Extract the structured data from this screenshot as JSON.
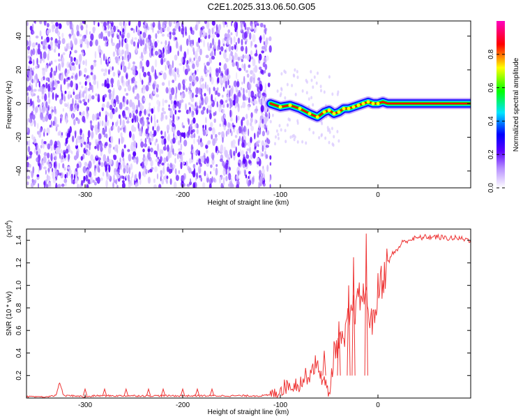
{
  "title": "C2E1.2025.313.06.50.G05",
  "chart_data": [
    {
      "type": "heatmap",
      "xlabel": "Height of straight line (km)",
      "ylabel": "Frequency (Hz)",
      "xlim": [
        -360,
        95
      ],
      "ylim": [
        -50,
        49
      ],
      "xticks": [
        -300,
        -200,
        -100,
        0
      ],
      "yticks": [
        -40,
        -20,
        0,
        20,
        40
      ],
      "x_tick_labels": [
        "-300",
        "-200",
        "-100",
        "0"
      ],
      "y_tick_labels": [
        "-40",
        "-20",
        "0",
        "20",
        "40"
      ],
      "noise_region_x": [
        -360,
        -110
      ],
      "signal_track": {
        "x": [
          -110,
          -100,
          -90,
          -80,
          -70,
          -62,
          -55,
          -50,
          -45,
          -40,
          -35,
          -30,
          -25,
          -20,
          -15,
          -10,
          -5,
          0,
          5,
          10,
          95
        ],
        "freq": [
          0,
          -2,
          -1,
          -3,
          -6,
          -8,
          -5,
          -4,
          -6,
          -5,
          -3,
          -3,
          -2,
          -1,
          0,
          1,
          0,
          0,
          1,
          0,
          0
        ]
      },
      "colorbar": {
        "label": "Normalized spectral amplitude",
        "range": [
          0,
          1
        ],
        "ticks": [
          "0.0",
          "0.2",
          "0.4",
          "0.6",
          "0.8"
        ],
        "colors": [
          "#ffffff",
          "#7a2cff",
          "#0000ff",
          "#00ffff",
          "#00ff00",
          "#ffff00",
          "#ff0000",
          "#ff00ff"
        ]
      }
    },
    {
      "type": "line",
      "xlabel": "Height of straight line (km)",
      "ylabel": "SNR (10 * v/v)",
      "yscale_label": "(x10",
      "yscale_exp": "4",
      "yscale_close": ")",
      "xlim": [
        -360,
        95
      ],
      "ylim": [
        0,
        1.5
      ],
      "xticks": [
        -300,
        -200,
        -100,
        0
      ],
      "yticks": [
        0.2,
        0.4,
        0.6,
        0.8,
        1.0,
        1.2,
        1.4
      ],
      "x_tick_labels": [
        "-300",
        "-200",
        "-100",
        "0"
      ],
      "y_tick_labels": [
        "0.2",
        "0.4",
        "0.6",
        "0.8",
        "1.0",
        "1.2",
        "1.4"
      ],
      "series": [
        {
          "color": "#ee3333",
          "x": [
            -360,
            -340,
            -330,
            -326,
            -322,
            -310,
            -300,
            -290,
            -270,
            -255,
            -240,
            -225,
            -210,
            -195,
            -180,
            -160,
            -140,
            -120,
            -105,
            -100,
            -95,
            -90,
            -85,
            -80,
            -75,
            -70,
            -65,
            -60,
            -55,
            -50,
            -45,
            -40,
            -35,
            -30,
            -25,
            -20,
            -15,
            -10,
            -5,
            0,
            5,
            10,
            15,
            20,
            25,
            30,
            40,
            50,
            60,
            70,
            80,
            90,
            95
          ],
          "y": [
            0.01,
            0.01,
            0.02,
            0.14,
            0.02,
            0.02,
            0.01,
            0.02,
            0.02,
            0.02,
            0.02,
            0.02,
            0.02,
            0.02,
            0.02,
            0.02,
            0.02,
            0.02,
            0.03,
            0.08,
            0.1,
            0.12,
            0.12,
            0.13,
            0.18,
            0.22,
            0.3,
            0.25,
            0.14,
            0.03,
            0.4,
            0.5,
            0.48,
            0.7,
            0.78,
            0.85,
            0.95,
            0.8,
            0.65,
            0.95,
            1.08,
            1.2,
            1.28,
            1.32,
            1.38,
            1.4,
            1.42,
            1.43,
            1.43,
            1.42,
            1.42,
            1.41,
            1.4
          ],
          "spikes": [
            {
              "x": -12,
              "y": 1.46
            },
            {
              "x": -25,
              "y": 1.25
            },
            {
              "x": -30,
              "y": 1.0
            },
            {
              "x": -40,
              "y": 0.68
            },
            {
              "x": -55,
              "y": 0.42
            }
          ]
        }
      ]
    }
  ]
}
